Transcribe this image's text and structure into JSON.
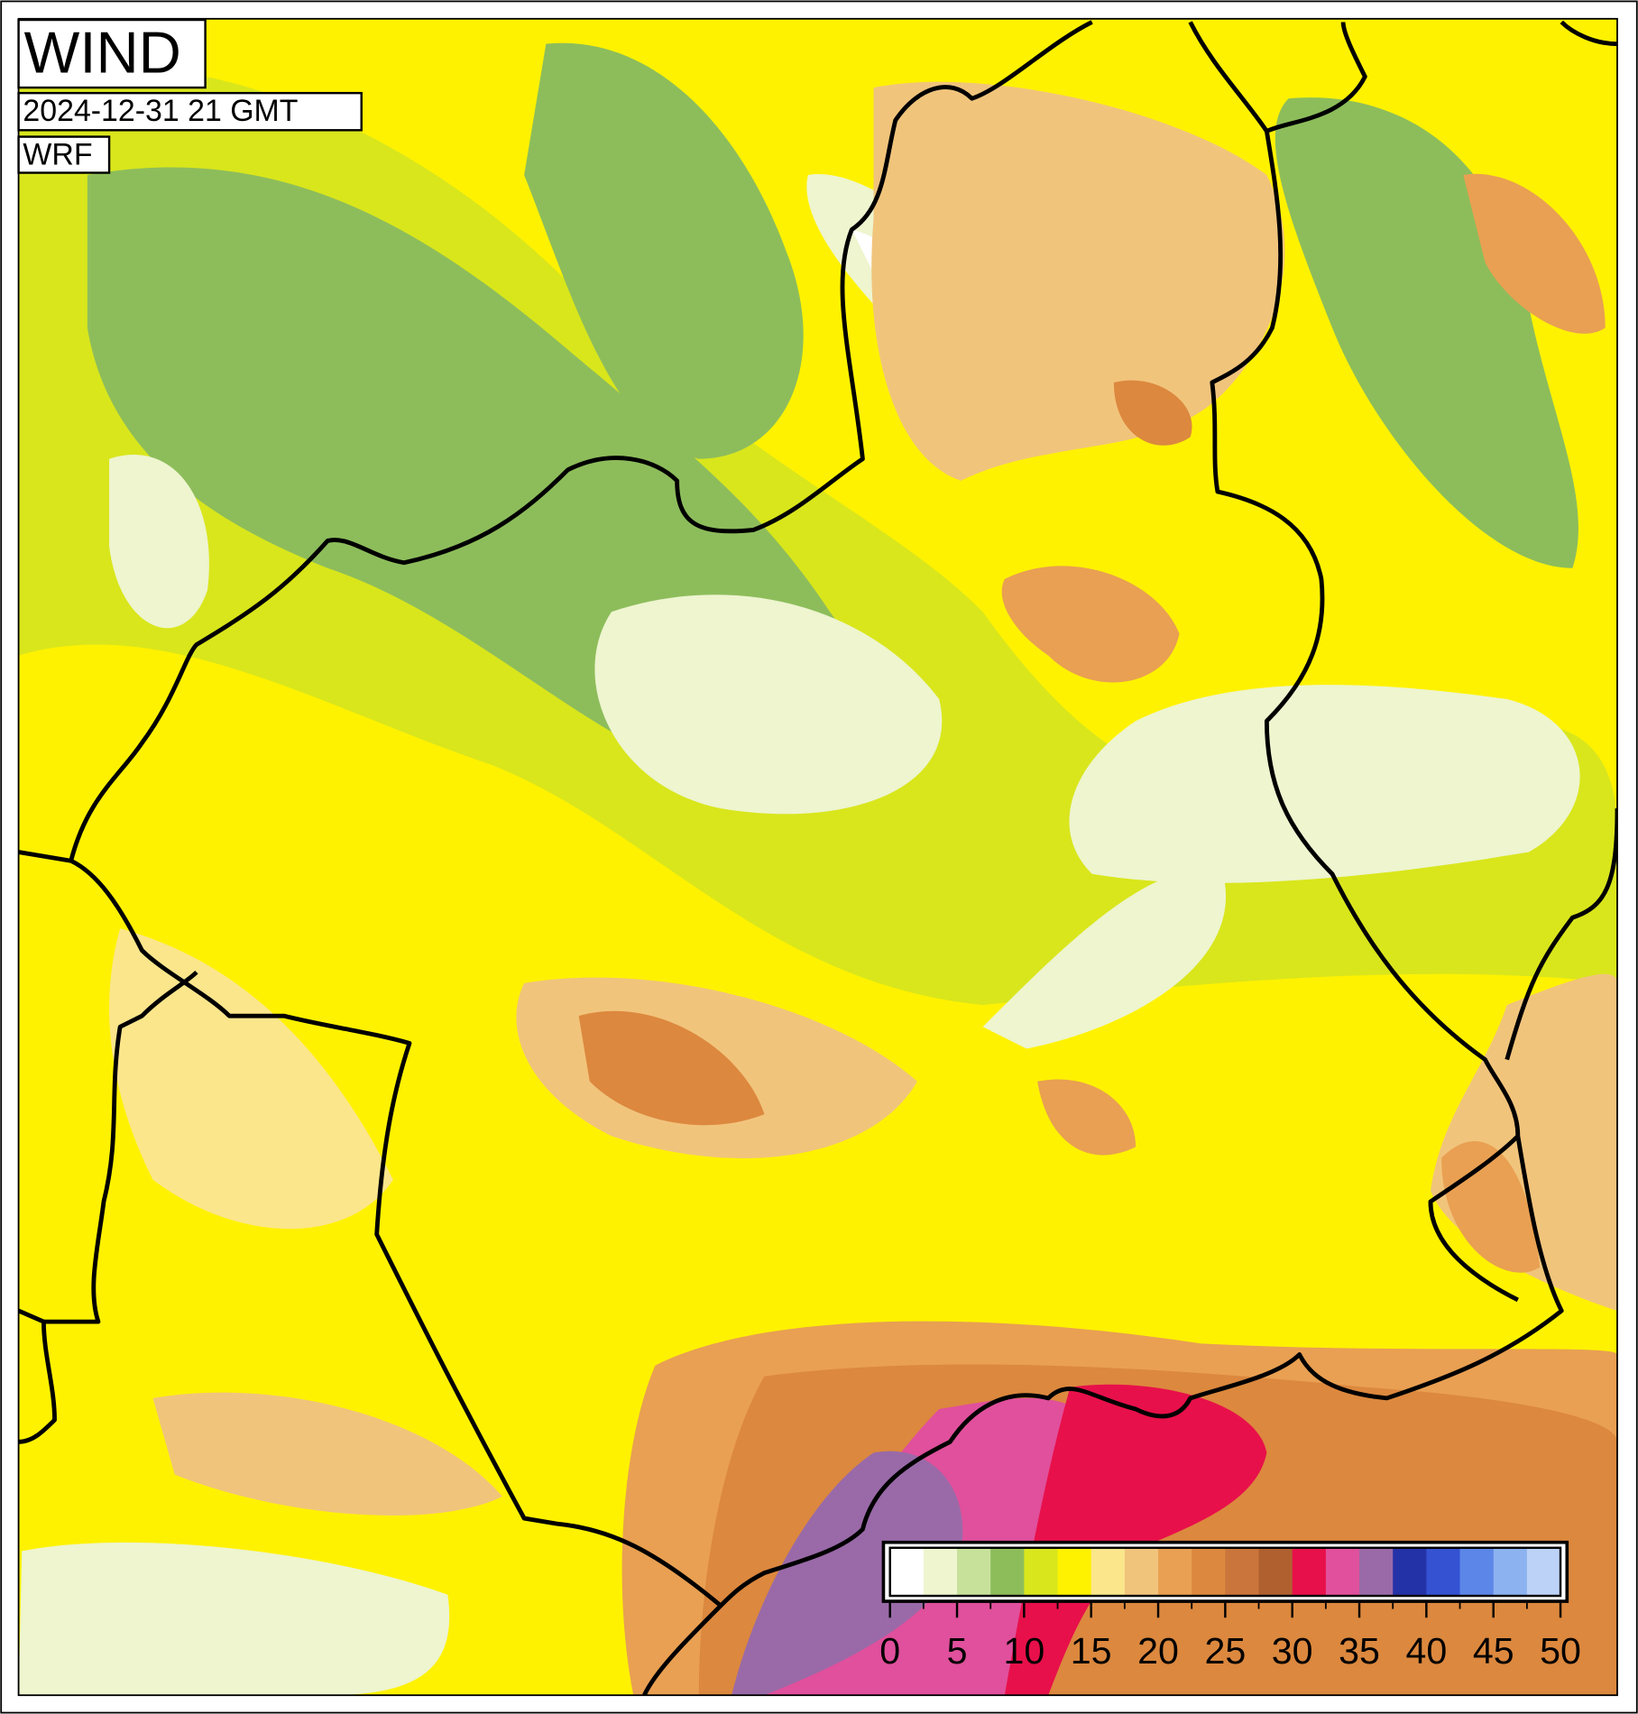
{
  "title": "WIND",
  "time": "2024-12-31 21 GMT",
  "model": "WRF",
  "colorbar": {
    "range": [
      0,
      50
    ],
    "ticks": [
      0,
      5,
      10,
      15,
      20,
      25,
      30,
      35,
      40,
      45,
      50
    ],
    "levels": [
      0,
      2.5,
      5,
      7.5,
      10,
      12.5,
      15,
      17.5,
      20,
      22.5,
      25,
      27.5,
      30,
      32.5,
      35,
      37.5,
      40,
      42.5,
      45,
      47.5,
      50
    ],
    "colors": [
      "#ffffff",
      "#eef5cf",
      "#c7e19a",
      "#8dbd5b",
      "#d9e61c",
      "#fff200",
      "#fbe68c",
      "#f1c47c",
      "#e9a052",
      "#dc883e",
      "#c9753b",
      "#b0602f",
      "#e8104a",
      "#e0509c",
      "#9a6aa8",
      "#2432a8",
      "#3452d2",
      "#5c86e8",
      "#8cb2f0",
      "#bcd2f6"
    ]
  }
}
